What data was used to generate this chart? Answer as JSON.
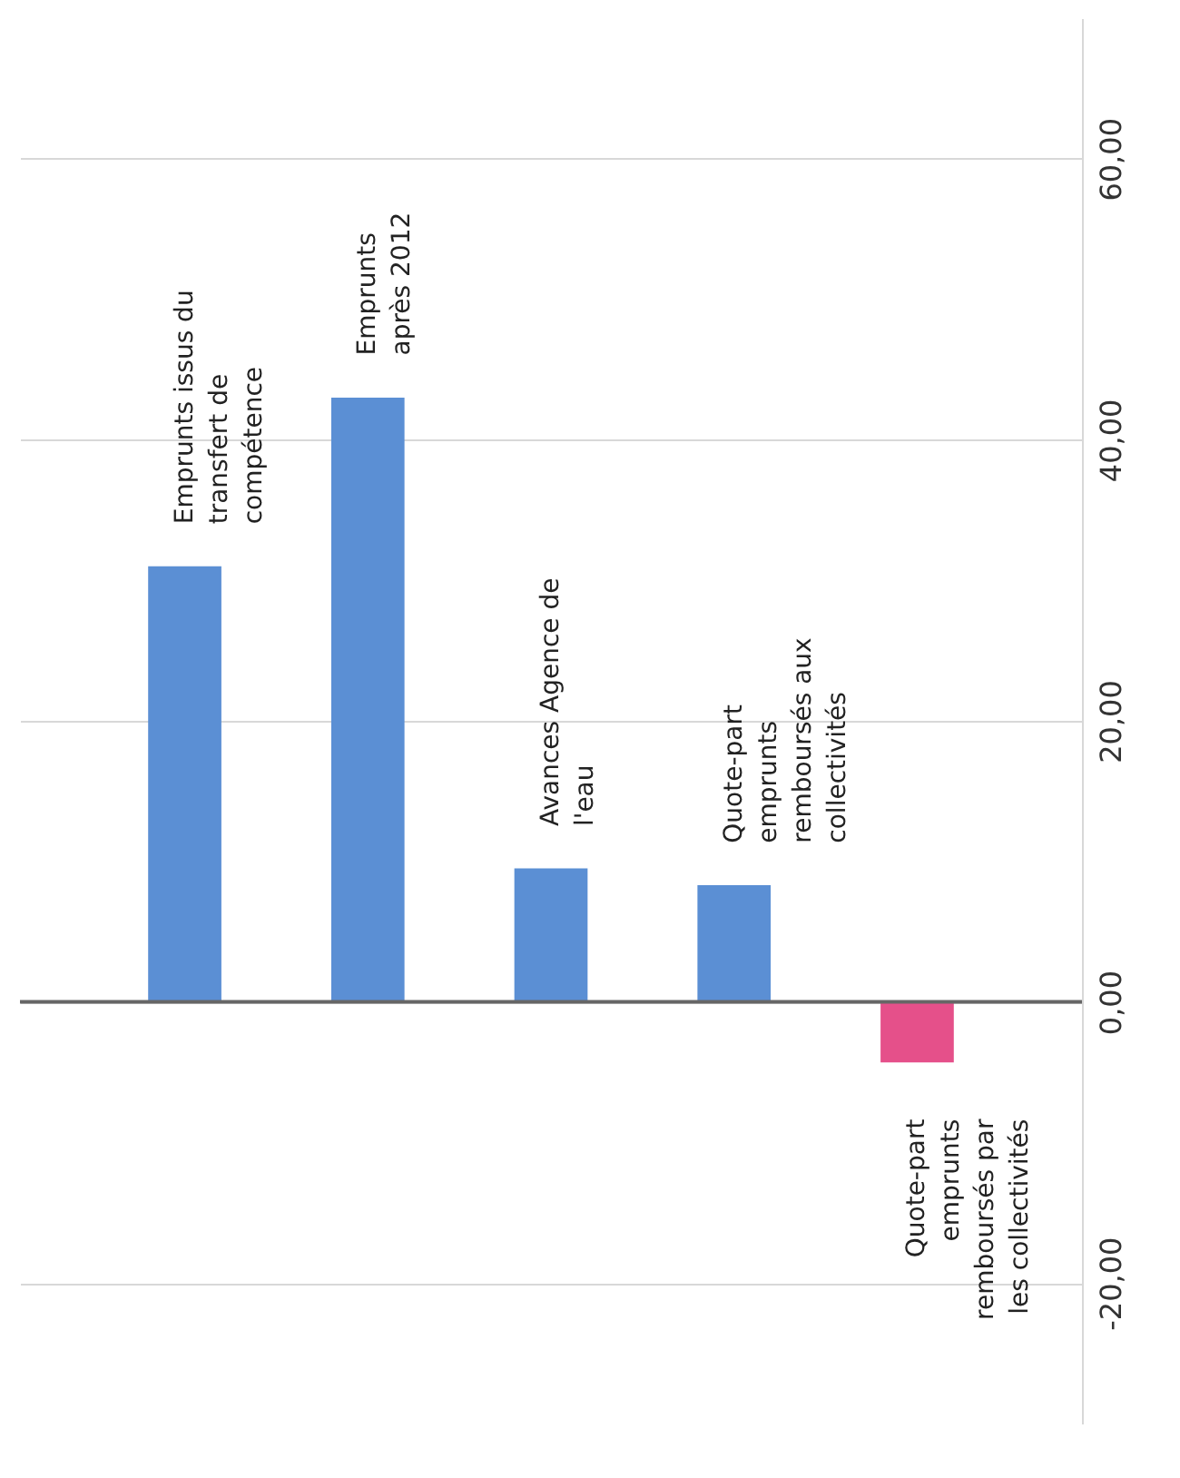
{
  "chart_data": {
    "type": "bar",
    "categories": [
      "Emprunts issus du\ntransfert de\ncompétence",
      "Emprunts\naprès 2012",
      "Avances Agence de\nl'eau",
      "Quote-part\nemprunts\nremboursés aux\ncollectivités",
      "Quote-part\nemprunts\nremboursés par\nles collectivités"
    ],
    "values": [
      31,
      43,
      9.5,
      8.3,
      -4.3
    ],
    "colors": [
      "#5b8fd4",
      "#5b8fd4",
      "#5b8fd4",
      "#5b8fd4",
      "#e5508a"
    ],
    "ylim": [
      -30,
      70
    ],
    "yticks": [
      {
        "value": -20,
        "label": "-20,00"
      },
      {
        "value": 0,
        "label": "0,00"
      },
      {
        "value": 20,
        "label": "20,00"
      },
      {
        "value": 40,
        "label": "40,00"
      },
      {
        "value": 60,
        "label": "60,00"
      }
    ],
    "grid": true
  }
}
